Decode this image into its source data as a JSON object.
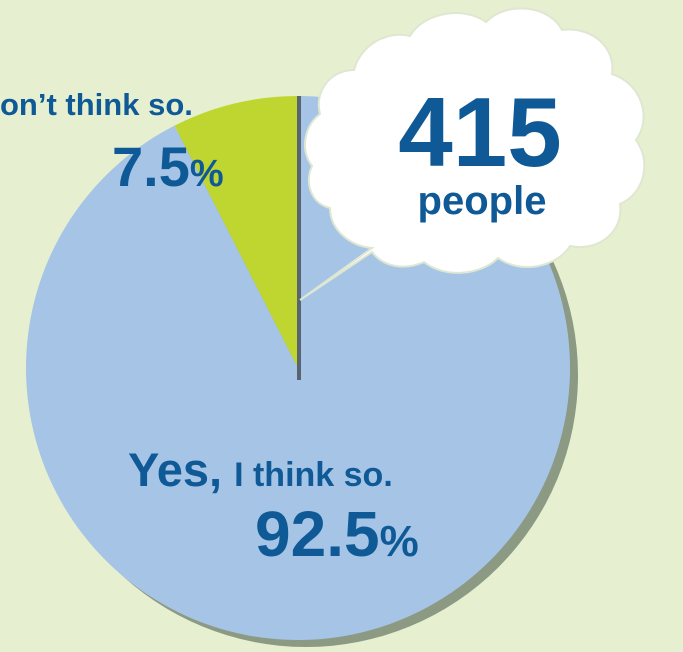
{
  "chart_data": {
    "type": "pie",
    "slices": [
      {
        "label": "Yes, I think so.",
        "label_strong": "Yes,",
        "label_rest": "I think so.",
        "value": 92.5,
        "display": "92.5",
        "color": "#a6c5e6"
      },
      {
        "label": "Don't think so.",
        "label_visible": "on’t think so.",
        "value": 7.5,
        "display": "7.5",
        "color": "#bfd630"
      }
    ],
    "unit": "%",
    "callout": {
      "number": "415",
      "unit_text": "people"
    },
    "colors": {
      "text": "#0f5a96",
      "background": "#e6efcf",
      "shadow": "#8c9a84",
      "divider": "#5a6470",
      "cloud": "#ffffff"
    }
  }
}
